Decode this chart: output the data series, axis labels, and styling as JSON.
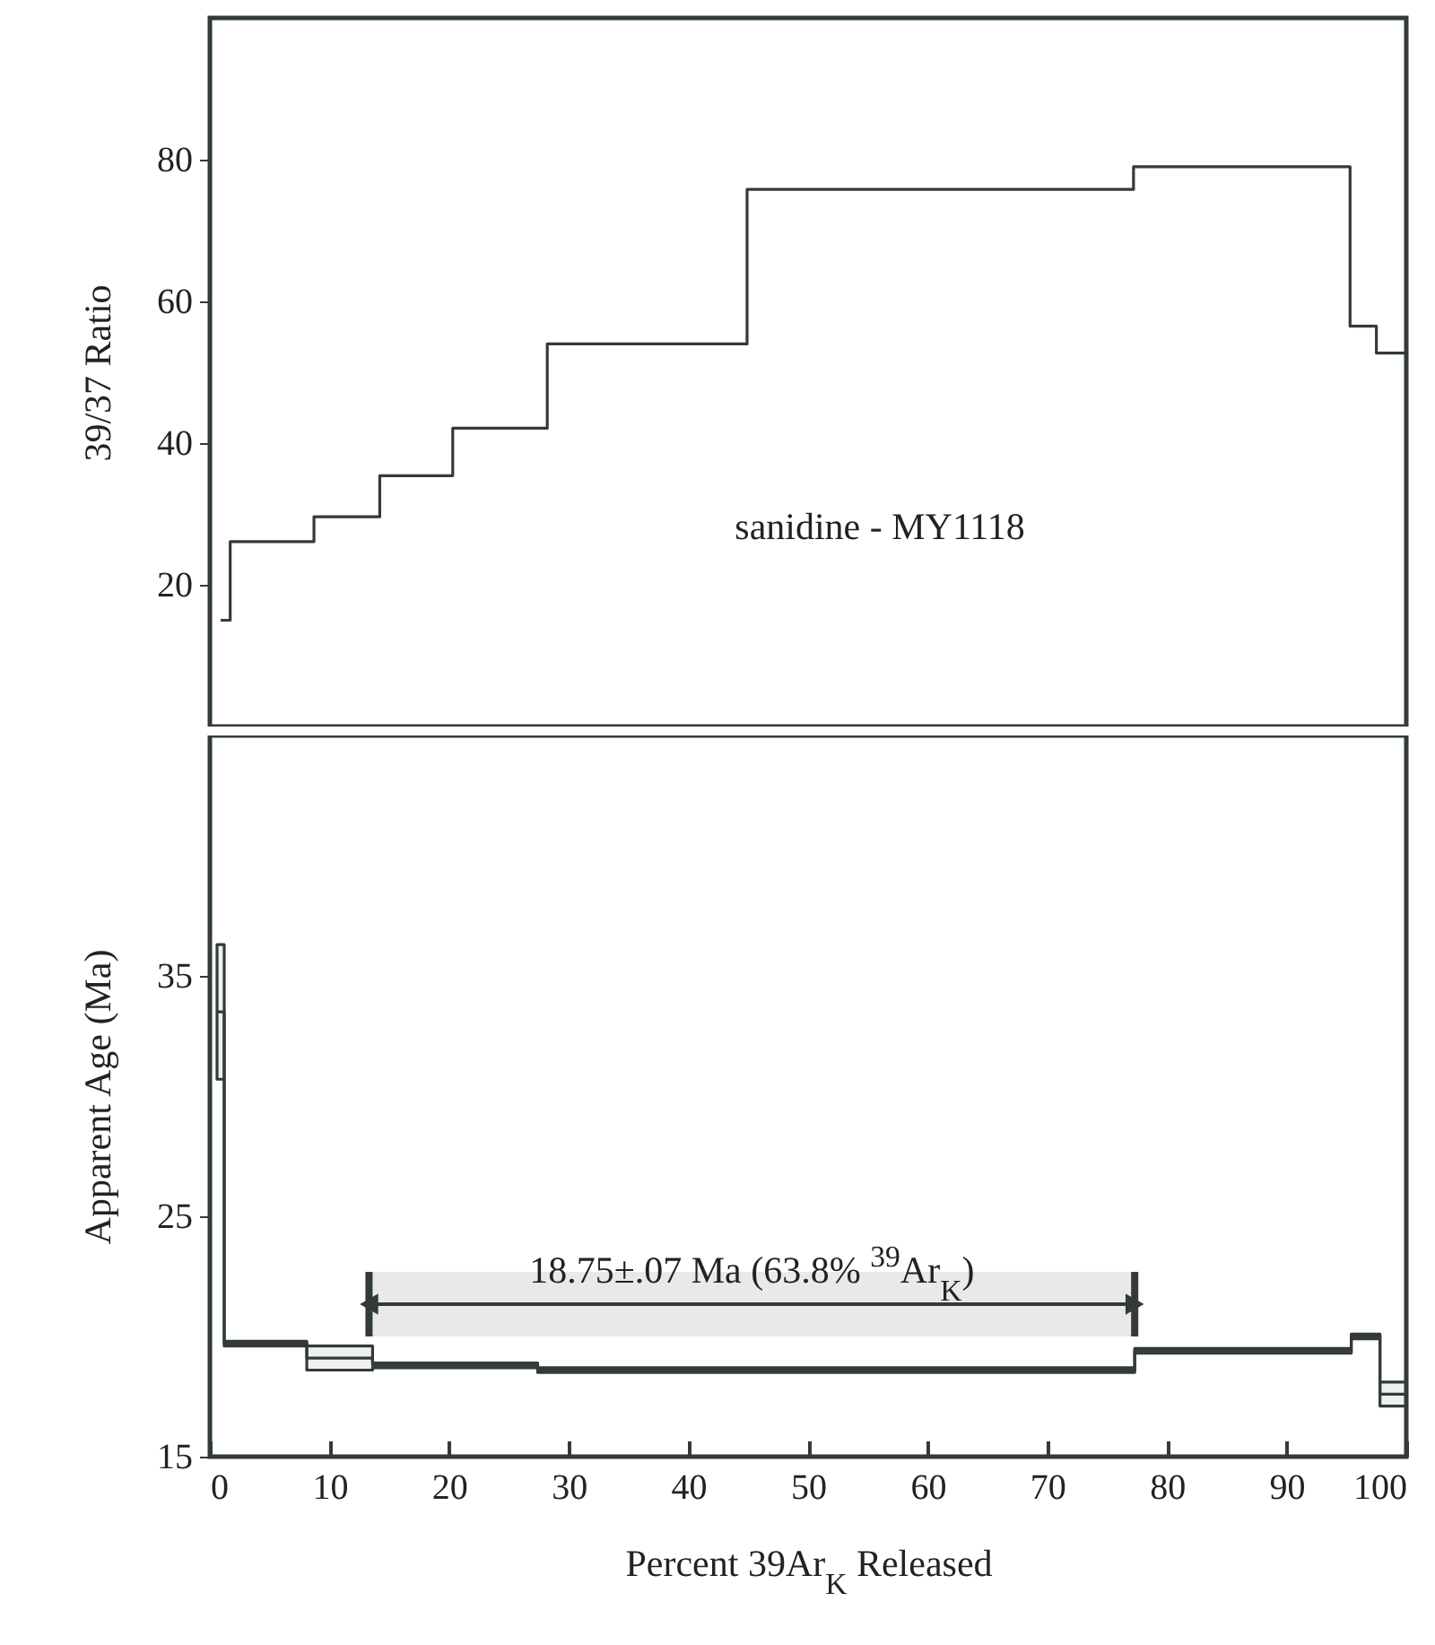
{
  "chart_data": [
    {
      "type": "step",
      "ylabel": "39/37 Ratio",
      "xlim": [
        0,
        100
      ],
      "ylim": [
        0,
        100
      ],
      "yticks": [
        20,
        40,
        60,
        80
      ],
      "tick_labels": "y",
      "color": "#333a3a",
      "x": [
        0.9,
        1.7,
        8.7,
        14.2,
        20.3,
        28.2,
        44.9,
        77.2,
        95.3,
        97.5,
        100
      ],
      "values": [
        15,
        26.1,
        29.6,
        35.4,
        42.1,
        54.0,
        75.8,
        79.0,
        56.5,
        52.7,
        52.7
      ],
      "annotations": [
        "sanidine - MY1118"
      ]
    },
    {
      "type": "step",
      "ylabel": "Apparent Age (Ma)",
      "xlabel": "Percent 39Ar$_{K}$ Released",
      "xlim": [
        0,
        100
      ],
      "xticks": [
        0,
        10,
        20,
        30,
        40,
        50,
        60,
        70,
        80,
        90,
        100
      ],
      "ylim": [
        15,
        45
      ],
      "yticks": [
        15,
        25,
        35
      ],
      "series": [
        {
          "color": "#333a3a",
          "x": [
            0.6,
            1.2,
            8.1,
            13.6,
            27.4,
            77.3,
            95.4,
            97.8,
            100
          ],
          "values": [
            33.5,
            19.7,
            19.1,
            18.8,
            18.6,
            19.4,
            20.0,
            17.6,
            17.6
          ],
          "lower": [
            30.7,
            19.6,
            18.6,
            18.7,
            18.5,
            19.3,
            19.9,
            17.1,
            17.1
          ],
          "upper": [
            36.3,
            19.8,
            19.6,
            18.9,
            18.7,
            19.5,
            20.1,
            18.1,
            18.1
          ]
        }
      ],
      "bands": [
        {
          "axis": "x",
          "from": 13.3,
          "to": 77.3,
          "label": "18.75±.07 Ma (63.8% $^{39}$Ar$_{K}$)"
        }
      ]
    }
  ]
}
